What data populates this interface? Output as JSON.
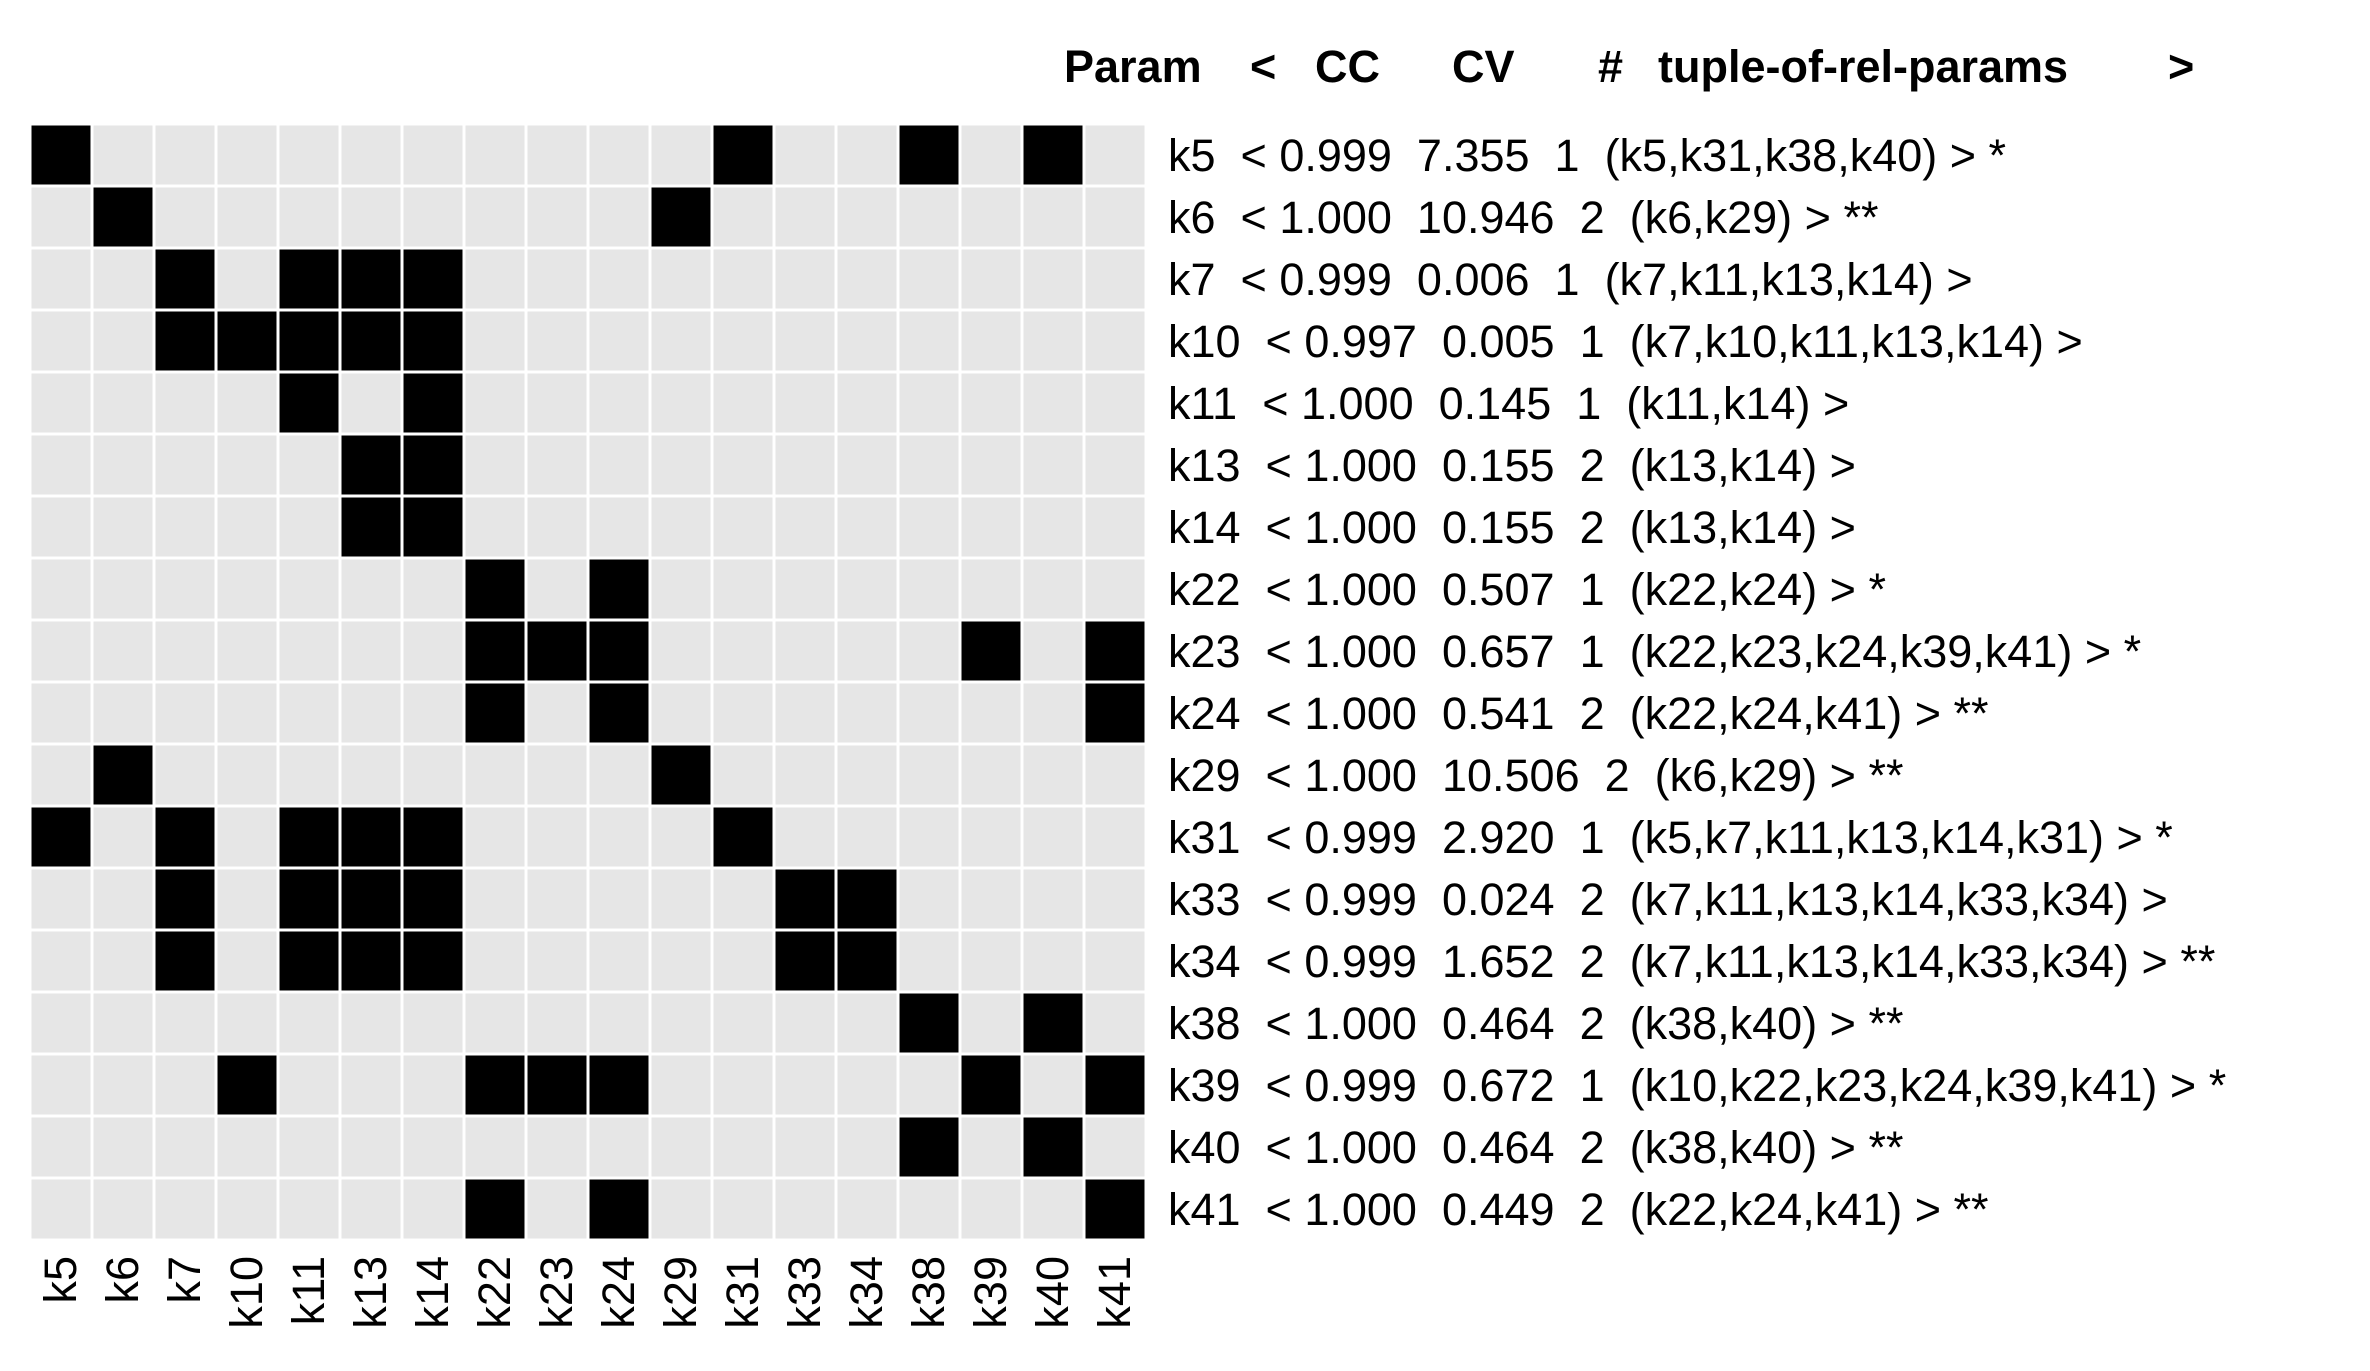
{
  "chart_data": {
    "type": "heatmap",
    "title": "",
    "xlabel": "",
    "ylabel": "",
    "legend": "none",
    "colors": {
      "on": "#000000",
      "off": "#e6e6e6",
      "grid": "#ffffff"
    },
    "header": {
      "param": "Param",
      "open": "<",
      "cc": "CC",
      "cv": "CV",
      "hash": "#",
      "tuple": "tuple-of-rel-params",
      "close": ">"
    },
    "columns": [
      "k5",
      "k6",
      "k7",
      "k10",
      "k11",
      "k13",
      "k14",
      "k22",
      "k23",
      "k24",
      "k29",
      "k31",
      "k33",
      "k34",
      "k38",
      "k39",
      "k40",
      "k41"
    ],
    "rows": [
      {
        "param": "k5",
        "cc": "0.999",
        "cv": "7.355",
        "n": "1",
        "tuple": "(k5,k31,k38,k40)",
        "mark": "*",
        "cells": [
          1,
          0,
          0,
          0,
          0,
          0,
          0,
          0,
          0,
          0,
          0,
          1,
          0,
          0,
          1,
          0,
          1,
          0
        ]
      },
      {
        "param": "k6",
        "cc": "1.000",
        "cv": "10.946",
        "n": "2",
        "tuple": "(k6,k29)",
        "mark": "**",
        "cells": [
          0,
          1,
          0,
          0,
          0,
          0,
          0,
          0,
          0,
          0,
          1,
          0,
          0,
          0,
          0,
          0,
          0,
          0
        ]
      },
      {
        "param": "k7",
        "cc": "0.999",
        "cv": "0.006",
        "n": "1",
        "tuple": "(k7,k11,k13,k14)",
        "mark": "",
        "cells": [
          0,
          0,
          1,
          0,
          1,
          1,
          1,
          0,
          0,
          0,
          0,
          0,
          0,
          0,
          0,
          0,
          0,
          0
        ]
      },
      {
        "param": "k10",
        "cc": "0.997",
        "cv": "0.005",
        "n": "1",
        "tuple": "(k7,k10,k11,k13,k14)",
        "mark": "",
        "cells": [
          0,
          0,
          1,
          1,
          1,
          1,
          1,
          0,
          0,
          0,
          0,
          0,
          0,
          0,
          0,
          0,
          0,
          0
        ]
      },
      {
        "param": "k11",
        "cc": "1.000",
        "cv": "0.145",
        "n": "1",
        "tuple": "(k11,k14)",
        "mark": "",
        "cells": [
          0,
          0,
          0,
          0,
          1,
          0,
          1,
          0,
          0,
          0,
          0,
          0,
          0,
          0,
          0,
          0,
          0,
          0
        ]
      },
      {
        "param": "k13",
        "cc": "1.000",
        "cv": "0.155",
        "n": "2",
        "tuple": "(k13,k14)",
        "mark": "",
        "cells": [
          0,
          0,
          0,
          0,
          0,
          1,
          1,
          0,
          0,
          0,
          0,
          0,
          0,
          0,
          0,
          0,
          0,
          0
        ]
      },
      {
        "param": "k14",
        "cc": "1.000",
        "cv": "0.155",
        "n": "2",
        "tuple": "(k13,k14)",
        "mark": "",
        "cells": [
          0,
          0,
          0,
          0,
          0,
          1,
          1,
          0,
          0,
          0,
          0,
          0,
          0,
          0,
          0,
          0,
          0,
          0
        ]
      },
      {
        "param": "k22",
        "cc": "1.000",
        "cv": "0.507",
        "n": "1",
        "tuple": "(k22,k24)",
        "mark": "*",
        "cells": [
          0,
          0,
          0,
          0,
          0,
          0,
          0,
          1,
          0,
          1,
          0,
          0,
          0,
          0,
          0,
          0,
          0,
          0
        ]
      },
      {
        "param": "k23",
        "cc": "1.000",
        "cv": "0.657",
        "n": "1",
        "tuple": "(k22,k23,k24,k39,k41)",
        "mark": "*",
        "cells": [
          0,
          0,
          0,
          0,
          0,
          0,
          0,
          1,
          1,
          1,
          0,
          0,
          0,
          0,
          0,
          1,
          0,
          1
        ]
      },
      {
        "param": "k24",
        "cc": "1.000",
        "cv": "0.541",
        "n": "2",
        "tuple": "(k22,k24,k41)",
        "mark": "**",
        "cells": [
          0,
          0,
          0,
          0,
          0,
          0,
          0,
          1,
          0,
          1,
          0,
          0,
          0,
          0,
          0,
          0,
          0,
          1
        ]
      },
      {
        "param": "k29",
        "cc": "1.000",
        "cv": "10.506",
        "n": "2",
        "tuple": "(k6,k29)",
        "mark": "**",
        "cells": [
          0,
          1,
          0,
          0,
          0,
          0,
          0,
          0,
          0,
          0,
          1,
          0,
          0,
          0,
          0,
          0,
          0,
          0
        ]
      },
      {
        "param": "k31",
        "cc": "0.999",
        "cv": "2.920",
        "n": "1",
        "tuple": "(k5,k7,k11,k13,k14,k31)",
        "mark": "*",
        "cells": [
          1,
          0,
          1,
          0,
          1,
          1,
          1,
          0,
          0,
          0,
          0,
          1,
          0,
          0,
          0,
          0,
          0,
          0
        ]
      },
      {
        "param": "k33",
        "cc": "0.999",
        "cv": "0.024",
        "n": "2",
        "tuple": "(k7,k11,k13,k14,k33,k34)",
        "mark": "",
        "cells": [
          0,
          0,
          1,
          0,
          1,
          1,
          1,
          0,
          0,
          0,
          0,
          0,
          1,
          1,
          0,
          0,
          0,
          0
        ]
      },
      {
        "param": "k34",
        "cc": "0.999",
        "cv": "1.652",
        "n": "2",
        "tuple": "(k7,k11,k13,k14,k33,k34)",
        "mark": "**",
        "cells": [
          0,
          0,
          1,
          0,
          1,
          1,
          1,
          0,
          0,
          0,
          0,
          0,
          1,
          1,
          0,
          0,
          0,
          0
        ]
      },
      {
        "param": "k38",
        "cc": "1.000",
        "cv": "0.464",
        "n": "2",
        "tuple": "(k38,k40)",
        "mark": "**",
        "cells": [
          0,
          0,
          0,
          0,
          0,
          0,
          0,
          0,
          0,
          0,
          0,
          0,
          0,
          0,
          1,
          0,
          1,
          0
        ]
      },
      {
        "param": "k39",
        "cc": "0.999",
        "cv": "0.672",
        "n": "1",
        "tuple": "(k10,k22,k23,k24,k39,k41)",
        "mark": "*",
        "cells": [
          0,
          0,
          0,
          1,
          0,
          0,
          0,
          1,
          1,
          1,
          0,
          0,
          0,
          0,
          0,
          1,
          0,
          1
        ]
      },
      {
        "param": "k40",
        "cc": "1.000",
        "cv": "0.464",
        "n": "2",
        "tuple": "(k38,k40)",
        "mark": "**",
        "cells": [
          0,
          0,
          0,
          0,
          0,
          0,
          0,
          0,
          0,
          0,
          0,
          0,
          0,
          0,
          1,
          0,
          1,
          0
        ]
      },
      {
        "param": "k41",
        "cc": "1.000",
        "cv": "0.449",
        "n": "2",
        "tuple": "(k22,k24,k41)",
        "mark": "**",
        "cells": [
          0,
          0,
          0,
          0,
          0,
          0,
          0,
          1,
          0,
          1,
          0,
          0,
          0,
          0,
          0,
          0,
          0,
          1
        ]
      }
    ]
  }
}
